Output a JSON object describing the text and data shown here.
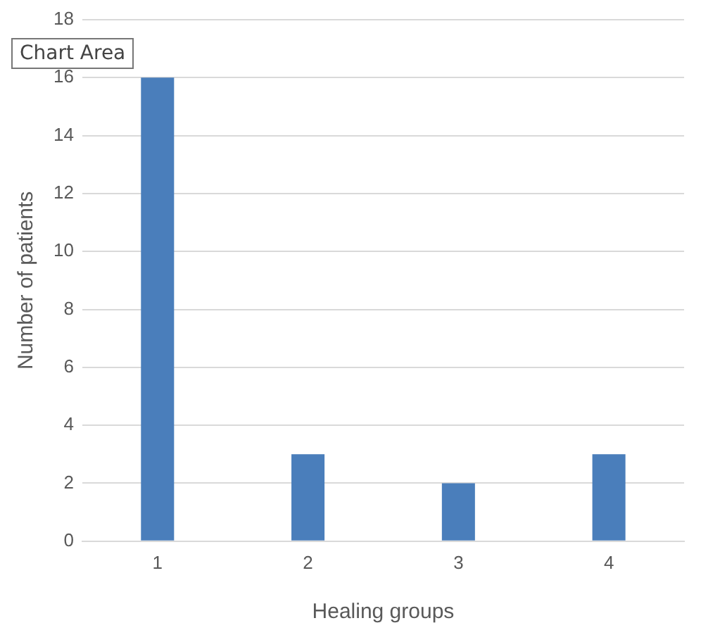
{
  "chart_data": {
    "type": "bar",
    "xlabel": "Healing groups",
    "ylabel": "Number of patients",
    "categories": [
      "1",
      "2",
      "3",
      "4"
    ],
    "values": [
      16,
      3,
      2,
      3
    ],
    "color": "#4a7ebb",
    "ylim": [
      0,
      18
    ],
    "yticks": [
      0,
      2,
      4,
      6,
      8,
      10,
      12,
      14,
      16,
      18
    ],
    "grid": "y",
    "legend": false,
    "annotations": [
      "Chart Area"
    ]
  }
}
